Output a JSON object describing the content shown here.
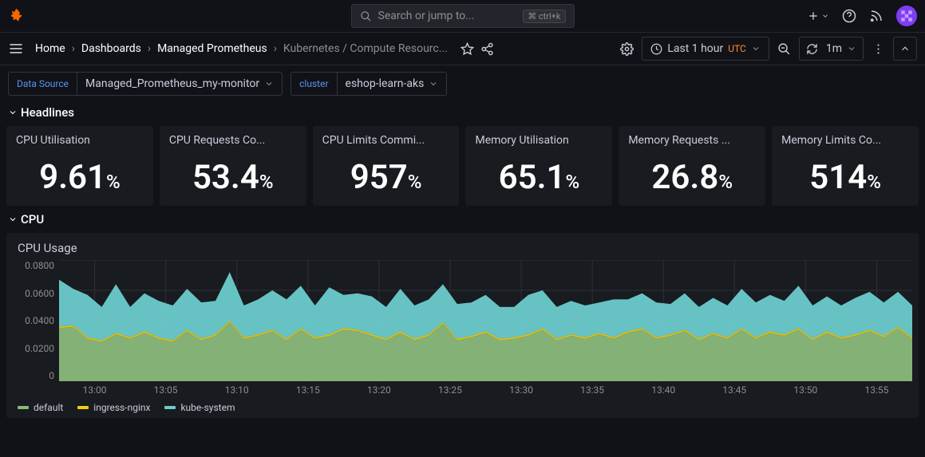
{
  "search": {
    "placeholder": "Search or jump to...",
    "shortcut": "ctrl+k"
  },
  "breadcrumbs": [
    "Home",
    "Dashboards",
    "Managed Prometheus",
    "Kubernetes / Compute Resourc..."
  ],
  "timepicker": {
    "label": "Last 1 hour",
    "tz": "UTC",
    "refresh": "1m"
  },
  "vars": {
    "ds_label": "Data Source",
    "ds_value": "Managed_Prometheus_my-monitor",
    "cluster_label": "cluster",
    "cluster_value": "eshop-learn-aks"
  },
  "rows": {
    "headlines": "Headlines",
    "cpu": "CPU"
  },
  "stats": [
    {
      "title": "CPU Utilisation",
      "value": "9.61",
      "unit": "%"
    },
    {
      "title": "CPU Requests Co...",
      "value": "53.4",
      "unit": "%"
    },
    {
      "title": "CPU Limits Commi...",
      "value": "957",
      "unit": "%"
    },
    {
      "title": "Memory Utilisation",
      "value": "65.1",
      "unit": "%"
    },
    {
      "title": "Memory Requests ...",
      "value": "26.8",
      "unit": "%"
    },
    {
      "title": "Memory Limits Co...",
      "value": "514",
      "unit": "%"
    }
  ],
  "chart": {
    "title": "CPU Usage",
    "type": "area-stacked",
    "ylim": [
      0,
      0.08
    ],
    "yticks": [
      "0.0800",
      "0.0600",
      "0.0400",
      "0.0200",
      "0"
    ],
    "xticks": [
      "13:00",
      "13:05",
      "13:10",
      "13:15",
      "13:20",
      "13:25",
      "13:30",
      "13:35",
      "13:40",
      "13:45",
      "13:50",
      "13:55"
    ],
    "grid_color": "#2c2f34",
    "background": "#181b1f",
    "series": [
      {
        "name": "default",
        "color": "#8ab97b",
        "values": [
          0.035,
          0.036,
          0.028,
          0.026,
          0.031,
          0.028,
          0.032,
          0.028,
          0.026,
          0.033,
          0.027,
          0.03,
          0.039,
          0.028,
          0.03,
          0.033,
          0.027,
          0.034,
          0.028,
          0.03,
          0.034,
          0.033,
          0.03,
          0.027,
          0.032,
          0.027,
          0.03,
          0.038,
          0.027,
          0.029,
          0.032,
          0.027,
          0.028,
          0.03,
          0.034,
          0.027,
          0.03,
          0.028,
          0.031,
          0.028,
          0.032,
          0.034,
          0.028,
          0.03,
          0.033,
          0.027,
          0.031,
          0.028,
          0.034,
          0.028,
          0.032,
          0.03,
          0.034,
          0.027,
          0.032,
          0.028,
          0.03,
          0.033,
          0.029,
          0.035,
          0.028
        ]
      },
      {
        "name": "ingress-nginx",
        "color": "#f2cc0c",
        "values": [
          0.001,
          0.001,
          0.001,
          0.001,
          0.001,
          0.001,
          0.001,
          0.001,
          0.001,
          0.001,
          0.001,
          0.001,
          0.001,
          0.001,
          0.001,
          0.001,
          0.001,
          0.001,
          0.001,
          0.001,
          0.001,
          0.001,
          0.001,
          0.001,
          0.001,
          0.001,
          0.001,
          0.001,
          0.001,
          0.001,
          0.001,
          0.001,
          0.001,
          0.001,
          0.001,
          0.001,
          0.001,
          0.001,
          0.001,
          0.001,
          0.001,
          0.001,
          0.001,
          0.001,
          0.001,
          0.001,
          0.001,
          0.001,
          0.001,
          0.001,
          0.001,
          0.001,
          0.001,
          0.001,
          0.001,
          0.001,
          0.001,
          0.001,
          0.001,
          0.001,
          0.001
        ]
      },
      {
        "name": "kube-system",
        "color": "#6ccccc",
        "values": [
          0.031,
          0.024,
          0.028,
          0.022,
          0.032,
          0.02,
          0.025,
          0.024,
          0.023,
          0.027,
          0.024,
          0.022,
          0.032,
          0.021,
          0.023,
          0.026,
          0.026,
          0.028,
          0.021,
          0.031,
          0.022,
          0.024,
          0.025,
          0.021,
          0.028,
          0.022,
          0.023,
          0.025,
          0.023,
          0.022,
          0.024,
          0.021,
          0.02,
          0.026,
          0.025,
          0.021,
          0.022,
          0.021,
          0.02,
          0.025,
          0.021,
          0.023,
          0.023,
          0.02,
          0.024,
          0.021,
          0.023,
          0.021,
          0.026,
          0.023,
          0.024,
          0.022,
          0.028,
          0.022,
          0.023,
          0.021,
          0.024,
          0.025,
          0.022,
          0.023,
          0.021
        ]
      }
    ]
  },
  "colors": {
    "link": "#5794f2"
  }
}
